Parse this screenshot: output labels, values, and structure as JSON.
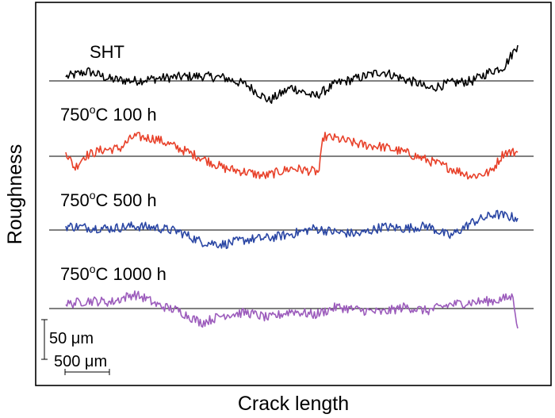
{
  "chart_data": {
    "type": "line",
    "title": "",
    "xlabel": "Crack length",
    "ylabel": "Roughness",
    "grid": false,
    "legend": "none",
    "x_range": [
      0,
      5000
    ],
    "y_units": "μm",
    "scale_bar": {
      "vertical_label": "50 μm",
      "vertical_value": 50,
      "horizontal_label": "500 μm",
      "horizontal_value": 500
    },
    "series": [
      {
        "name": "SHT",
        "label_parts": [
          "SHT"
        ],
        "color": "#000000",
        "x": [
          0,
          250,
          500,
          750,
          1000,
          1250,
          1500,
          1750,
          2000,
          2250,
          2500,
          2750,
          3000,
          3250,
          3500,
          3750,
          3900,
          4000,
          4250,
          4500,
          4700,
          4850,
          5000
        ],
        "y": [
          5,
          12,
          2,
          0,
          3,
          5,
          6,
          4,
          -5,
          -25,
          -8,
          -20,
          -3,
          4,
          12,
          2,
          -3,
          -10,
          -3,
          0,
          12,
          18,
          45
        ]
      },
      {
        "name": "750°C 100 h",
        "label_parts": [
          "750",
          "o",
          "C 100 h"
        ],
        "color": "#e8412a",
        "x": [
          0,
          100,
          200,
          400,
          600,
          750,
          1000,
          1250,
          1500,
          1750,
          2000,
          2200,
          2500,
          2800,
          2850,
          3000,
          3250,
          3500,
          3750,
          4000,
          4250,
          4500,
          4700,
          4850,
          5000
        ],
        "y": [
          5,
          -15,
          0,
          8,
          10,
          25,
          22,
          10,
          -2,
          -15,
          -20,
          -25,
          -15,
          -20,
          25,
          22,
          15,
          12,
          5,
          -5,
          -15,
          -25,
          -20,
          5,
          5
        ]
      },
      {
        "name": "750°C 500 h",
        "label_parts": [
          "750",
          "o",
          "C 500 h"
        ],
        "color": "#2a46a4",
        "x": [
          0,
          250,
          500,
          750,
          1000,
          1250,
          1500,
          1750,
          2000,
          2250,
          2500,
          2750,
          3000,
          3250,
          3500,
          3750,
          4000,
          4250,
          4500,
          4750,
          5000
        ],
        "y": [
          5,
          3,
          2,
          5,
          3,
          -2,
          -15,
          -18,
          -12,
          -10,
          -5,
          2,
          -3,
          -5,
          4,
          2,
          5,
          -8,
          10,
          20,
          15
        ]
      },
      {
        "name": "750°C 1000 h",
        "label_parts": [
          "750",
          "o",
          "C 1000 h"
        ],
        "color": "#9c5cbc",
        "x": [
          0,
          250,
          500,
          750,
          900,
          1000,
          1250,
          1500,
          1750,
          2000,
          2250,
          2500,
          2750,
          3000,
          3250,
          3500,
          3750,
          4000,
          4250,
          4500,
          4750,
          4950,
          5000
        ],
        "y": [
          5,
          10,
          8,
          18,
          12,
          5,
          -3,
          -18,
          -8,
          -5,
          -12,
          -3,
          -8,
          2,
          -2,
          -5,
          2,
          -3,
          5,
          8,
          10,
          15,
          -25
        ]
      }
    ]
  }
}
